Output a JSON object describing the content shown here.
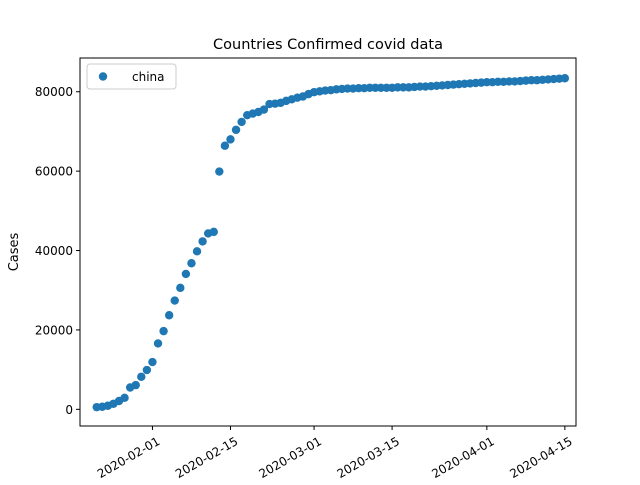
{
  "chart_data": {
    "type": "scatter",
    "title": "Countries Confirmed covid data",
    "xlabel": "",
    "ylabel": "Cases",
    "xlim": [
      "2020-01-19",
      "2020-04-17"
    ],
    "ylim": [
      -4200,
      88500
    ],
    "xticks": [
      "2020-02-01",
      "2020-02-15",
      "2020-03-01",
      "2020-03-15",
      "2020-04-01",
      "2020-04-15"
    ],
    "yticks": [
      0,
      20000,
      40000,
      60000,
      80000
    ],
    "grid": false,
    "legend_position": "top-left",
    "series": [
      {
        "name": "china",
        "color": "#1f77b4",
        "marker": "circle",
        "points": [
          [
            "2020-01-22",
            550
          ],
          [
            "2020-01-23",
            650
          ],
          [
            "2020-01-24",
            900
          ],
          [
            "2020-01-25",
            1400
          ],
          [
            "2020-01-26",
            2100
          ],
          [
            "2020-01-27",
            2900
          ],
          [
            "2020-01-28",
            5500
          ],
          [
            "2020-01-29",
            6100
          ],
          [
            "2020-01-30",
            8200
          ],
          [
            "2020-01-31",
            9900
          ],
          [
            "2020-02-01",
            11900
          ],
          [
            "2020-02-02",
            16600
          ],
          [
            "2020-02-03",
            19700
          ],
          [
            "2020-02-04",
            23700
          ],
          [
            "2020-02-05",
            27400
          ],
          [
            "2020-02-06",
            30600
          ],
          [
            "2020-02-07",
            34100
          ],
          [
            "2020-02-08",
            36800
          ],
          [
            "2020-02-09",
            39800
          ],
          [
            "2020-02-10",
            42300
          ],
          [
            "2020-02-11",
            44300
          ],
          [
            "2020-02-12",
            44700
          ],
          [
            "2020-02-13",
            59900
          ],
          [
            "2020-02-14",
            66400
          ],
          [
            "2020-02-15",
            68000
          ],
          [
            "2020-02-16",
            70400
          ],
          [
            "2020-02-17",
            72400
          ],
          [
            "2020-02-18",
            74100
          ],
          [
            "2020-02-19",
            74500
          ],
          [
            "2020-02-20",
            74900
          ],
          [
            "2020-02-21",
            75500
          ],
          [
            "2020-02-22",
            76900
          ],
          [
            "2020-02-23",
            77000
          ],
          [
            "2020-02-24",
            77200
          ],
          [
            "2020-02-25",
            77700
          ],
          [
            "2020-02-26",
            78100
          ],
          [
            "2020-02-27",
            78500
          ],
          [
            "2020-02-28",
            78800
          ],
          [
            "2020-02-29",
            79400
          ],
          [
            "2020-03-01",
            79900
          ],
          [
            "2020-03-02",
            80100
          ],
          [
            "2020-03-03",
            80300
          ],
          [
            "2020-03-04",
            80400
          ],
          [
            "2020-03-05",
            80600
          ],
          [
            "2020-03-06",
            80700
          ],
          [
            "2020-03-07",
            80800
          ],
          [
            "2020-03-08",
            80800
          ],
          [
            "2020-03-09",
            80900
          ],
          [
            "2020-03-10",
            80900
          ],
          [
            "2020-03-11",
            81000
          ],
          [
            "2020-03-12",
            81000
          ],
          [
            "2020-03-13",
            81000
          ],
          [
            "2020-03-14",
            81000
          ],
          [
            "2020-03-15",
            81000
          ],
          [
            "2020-03-16",
            81100
          ],
          [
            "2020-03-17",
            81100
          ],
          [
            "2020-03-18",
            81100
          ],
          [
            "2020-03-19",
            81200
          ],
          [
            "2020-03-20",
            81300
          ],
          [
            "2020-03-21",
            81300
          ],
          [
            "2020-03-22",
            81400
          ],
          [
            "2020-03-23",
            81500
          ],
          [
            "2020-03-24",
            81600
          ],
          [
            "2020-03-25",
            81700
          ],
          [
            "2020-03-26",
            81800
          ],
          [
            "2020-03-27",
            81900
          ],
          [
            "2020-03-28",
            82000
          ],
          [
            "2020-03-29",
            82100
          ],
          [
            "2020-03-30",
            82200
          ],
          [
            "2020-03-31",
            82300
          ],
          [
            "2020-04-01",
            82400
          ],
          [
            "2020-04-02",
            82400
          ],
          [
            "2020-04-03",
            82500
          ],
          [
            "2020-04-04",
            82500
          ],
          [
            "2020-04-05",
            82600
          ],
          [
            "2020-04-06",
            82600
          ],
          [
            "2020-04-07",
            82700
          ],
          [
            "2020-04-08",
            82800
          ],
          [
            "2020-04-09",
            82900
          ],
          [
            "2020-04-10",
            82900
          ],
          [
            "2020-04-11",
            83000
          ],
          [
            "2020-04-12",
            83100
          ],
          [
            "2020-04-13",
            83200
          ],
          [
            "2020-04-14",
            83300
          ],
          [
            "2020-04-15",
            83400
          ]
        ]
      }
    ]
  }
}
